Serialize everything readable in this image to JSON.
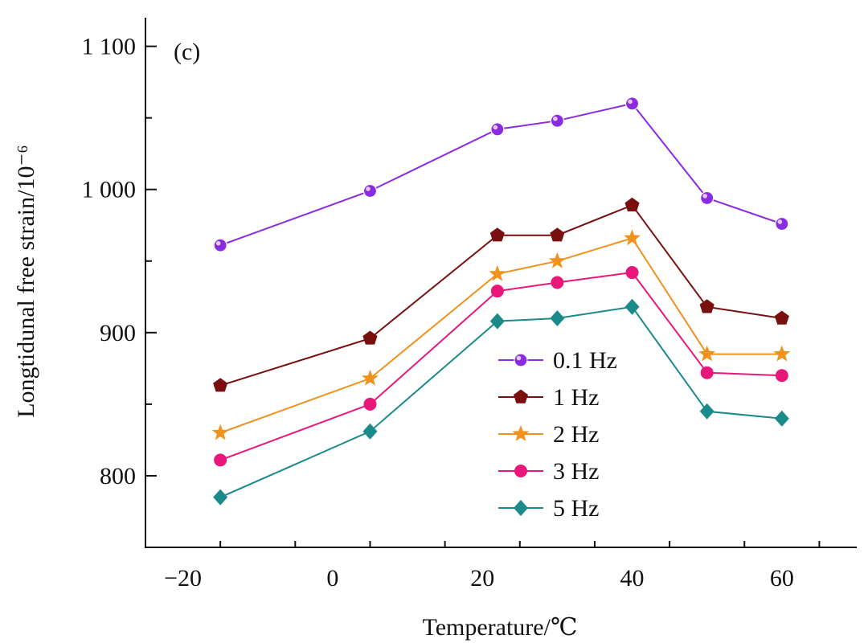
{
  "chart_data": {
    "type": "line",
    "panel_label": "(c)",
    "xlabel": "Temperature/℃",
    "ylabel": "Longtidunal free strain/10⁻⁶",
    "xlim": [
      -25,
      70
    ],
    "ylim": [
      750,
      1120
    ],
    "x_ticks": [
      -20,
      0,
      20,
      40,
      60
    ],
    "x_tick_labels": [
      "−20",
      "0",
      "20",
      "40",
      "60"
    ],
    "y_ticks": [
      800,
      900,
      1000,
      1100
    ],
    "y_tick_labels": [
      "800",
      "900",
      "1 000",
      "1 100"
    ],
    "legend_position": "center",
    "x": [
      -15,
      5,
      22,
      30,
      40,
      50,
      60
    ],
    "series": [
      {
        "name": "0.1 Hz",
        "color": "#8a2be2",
        "marker": "circle",
        "values": [
          961,
          999,
          1042,
          1048,
          1060,
          994,
          976
        ]
      },
      {
        "name": "1 Hz",
        "color": "#7a0f0f",
        "marker": "pentagon",
        "values": [
          863,
          896,
          968,
          968,
          989,
          918,
          910
        ]
      },
      {
        "name": "2 Hz",
        "color": "#f0921c",
        "marker": "star",
        "values": [
          830,
          868,
          941,
          950,
          966,
          885,
          885
        ]
      },
      {
        "name": "3 Hz",
        "color": "#e8177a",
        "marker": "dot",
        "values": [
          811,
          850,
          929,
          935,
          942,
          872,
          870
        ]
      },
      {
        "name": "5 Hz",
        "color": "#1b8a8a",
        "marker": "diamond",
        "values": [
          785,
          831,
          908,
          910,
          918,
          845,
          840
        ]
      }
    ]
  }
}
